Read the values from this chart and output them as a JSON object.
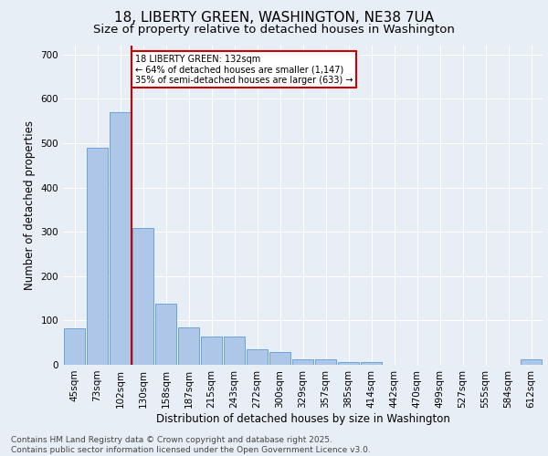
{
  "title_line1": "18, LIBERTY GREEN, WASHINGTON, NE38 7UA",
  "title_line2": "Size of property relative to detached houses in Washington",
  "xlabel": "Distribution of detached houses by size in Washington",
  "ylabel": "Number of detached properties",
  "categories": [
    "45sqm",
    "73sqm",
    "102sqm",
    "130sqm",
    "158sqm",
    "187sqm",
    "215sqm",
    "243sqm",
    "272sqm",
    "300sqm",
    "329sqm",
    "357sqm",
    "385sqm",
    "414sqm",
    "442sqm",
    "470sqm",
    "499sqm",
    "527sqm",
    "555sqm",
    "584sqm",
    "612sqm"
  ],
  "values": [
    83,
    490,
    570,
    308,
    137,
    85,
    63,
    63,
    35,
    28,
    12,
    12,
    6,
    6,
    0,
    0,
    0,
    0,
    0,
    0,
    12
  ],
  "bar_color": "#aec6e8",
  "bar_edgecolor": "#5b9bd5",
  "background_color": "#e8eef5",
  "vline_x_index": 3,
  "vline_color": "#cc0000",
  "annotation_text": "18 LIBERTY GREEN: 132sqm\n← 64% of detached houses are smaller (1,147)\n35% of semi-detached houses are larger (633) →",
  "annotation_box_color": "#cc0000",
  "ylim": [
    0,
    720
  ],
  "yticks": [
    0,
    100,
    200,
    300,
    400,
    500,
    600,
    700
  ],
  "footnote": "Contains HM Land Registry data © Crown copyright and database right 2025.\nContains public sector information licensed under the Open Government Licence v3.0.",
  "title_fontsize": 11,
  "subtitle_fontsize": 9.5,
  "label_fontsize": 8.5,
  "tick_fontsize": 7.5,
  "footnote_fontsize": 6.5
}
